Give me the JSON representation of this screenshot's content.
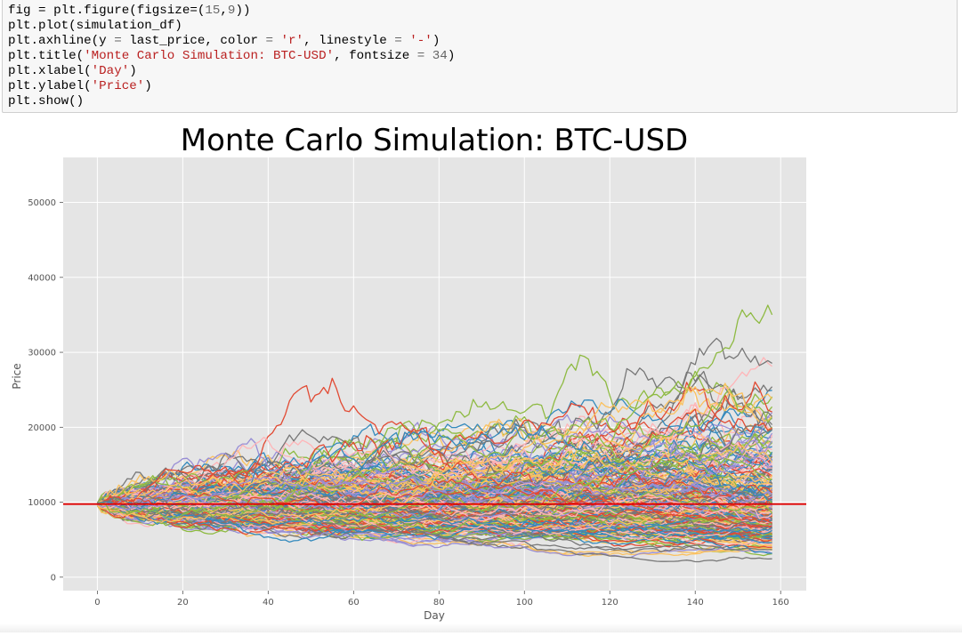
{
  "code_cell": {
    "lines": [
      [
        {
          "t": "fig = plt.figure(figsize=(",
          "c": "p"
        },
        {
          "t": "15",
          "c": "num"
        },
        {
          "t": ",",
          "c": "p"
        },
        {
          "t": "9",
          "c": "num"
        },
        {
          "t": "))",
          "c": "p"
        }
      ],
      [
        {
          "t": "plt.plot(simulation_df)",
          "c": "p"
        }
      ],
      [
        {
          "t": "plt.axhline(y ",
          "c": "p"
        },
        {
          "t": "=",
          "c": "op"
        },
        {
          "t": " last_price, color ",
          "c": "p"
        },
        {
          "t": "=",
          "c": "op"
        },
        {
          "t": " ",
          "c": "p"
        },
        {
          "t": "'r'",
          "c": "str"
        },
        {
          "t": ", linestyle ",
          "c": "p"
        },
        {
          "t": "=",
          "c": "op"
        },
        {
          "t": " ",
          "c": "p"
        },
        {
          "t": "'-'",
          "c": "str"
        },
        {
          "t": ")",
          "c": "p"
        }
      ],
      [
        {
          "t": "plt.title(",
          "c": "p"
        },
        {
          "t": "'Monte Carlo Simulation: BTC-USD'",
          "c": "str"
        },
        {
          "t": ", fontsize ",
          "c": "p"
        },
        {
          "t": "=",
          "c": "op"
        },
        {
          "t": " ",
          "c": "p"
        },
        {
          "t": "34",
          "c": "num"
        },
        {
          "t": ")",
          "c": "p"
        }
      ],
      [
        {
          "t": "plt.xlabel(",
          "c": "p"
        },
        {
          "t": "'Day'",
          "c": "str"
        },
        {
          "t": ")",
          "c": "p"
        }
      ],
      [
        {
          "t": "plt.ylabel(",
          "c": "p"
        },
        {
          "t": "'Price'",
          "c": "str"
        },
        {
          "t": ")",
          "c": "p"
        }
      ],
      [
        {
          "t": "plt.show()",
          "c": "p"
        }
      ]
    ]
  },
  "chart_data": {
    "type": "line",
    "title": "Monte Carlo Simulation: BTC-USD",
    "xlabel": "Day",
    "ylabel": "Price",
    "xlim": [
      -8,
      166
    ],
    "ylim": [
      -1800,
      56000
    ],
    "xticks": [
      0,
      20,
      40,
      60,
      80,
      100,
      120,
      140,
      160
    ],
    "yticks": [
      0,
      10000,
      20000,
      30000,
      40000,
      50000
    ],
    "grid": true,
    "background": "#e5e5e5",
    "start_price": 9750,
    "days": 158,
    "num_paths": 300,
    "axhline": {
      "y": 9750,
      "color": "#e00000",
      "label": "last_price"
    },
    "palette": [
      "#e24a33",
      "#348abd",
      "#988ed5",
      "#777777",
      "#fbc15e",
      "#8eba42",
      "#ffb5b8"
    ]
  }
}
